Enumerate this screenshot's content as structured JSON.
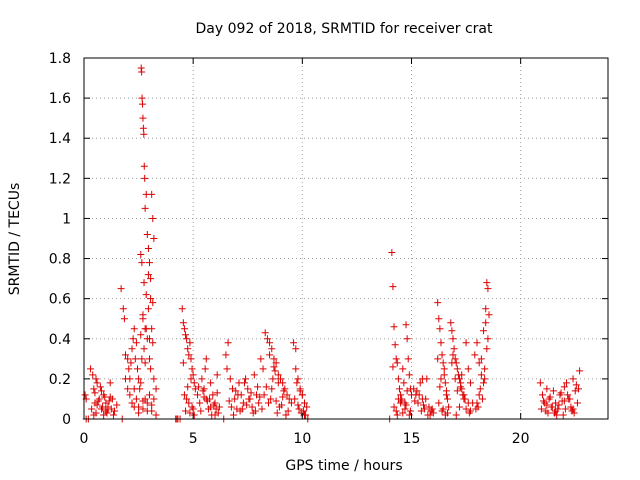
{
  "chart_data": {
    "type": "scatter",
    "title": "Day 092 of 2018, SRMTID for receiver crat",
    "xlabel": "GPS time / hours",
    "ylabel": "SRMTID / TECUs",
    "xlim": [
      0,
      24
    ],
    "ylim": [
      0,
      1.8
    ],
    "xticks": [
      0,
      5,
      10,
      15,
      20
    ],
    "yticks": [
      0,
      0.2,
      0.4,
      0.6,
      0.8,
      1,
      1.2,
      1.4,
      1.6,
      1.8
    ],
    "xtick_labels": [
      "0",
      "5",
      "10",
      "15",
      "20"
    ],
    "ytick_labels": [
      "0",
      "0.2",
      "0.4",
      "0.6",
      "0.8",
      "1",
      "1.2",
      "1.4",
      "1.6",
      "1.8"
    ],
    "grid": true,
    "marker": "+",
    "color": "#dd0000",
    "series": [
      {
        "name": "SRMTID",
        "x": [
          0.05,
          0.1,
          0.3,
          0.4,
          0.45,
          0.5,
          0.55,
          0.6,
          0.7,
          0.8,
          0.9,
          1.0,
          1.1,
          1.2,
          1.3,
          1.4,
          1.5,
          0.35,
          0.5,
          0.65,
          0.75,
          0.85,
          0.95,
          1.05,
          1.15,
          1.25,
          0.45,
          0.6,
          0.8,
          1.0,
          1.2,
          1.35,
          0.55,
          0.9,
          1.1,
          1.7,
          1.8,
          1.85,
          1.9,
          2.0,
          2.05,
          2.1,
          2.15,
          2.2,
          2.25,
          2.3,
          2.35,
          2.4,
          2.45,
          2.5,
          2.55,
          2.6,
          2.65,
          2.7,
          2.75,
          2.8,
          2.85,
          2.9,
          2.95,
          3.0,
          3.05,
          3.1,
          3.15,
          3.2,
          3.3,
          2.1,
          2.2,
          2.3,
          2.4,
          2.5,
          2.6,
          2.7,
          2.8,
          2.9,
          3.0,
          3.1,
          3.2,
          1.9,
          2.0,
          2.3,
          2.5,
          2.7,
          2.9,
          3.1,
          3.3,
          2.62,
          2.64,
          2.66,
          2.68,
          2.7,
          2.72,
          2.74,
          2.76,
          2.78,
          2.8,
          2.85,
          2.9,
          2.95,
          3.0,
          3.05,
          3.1,
          3.15,
          3.2,
          2.6,
          2.65,
          2.75,
          2.85,
          2.95,
          3.05,
          3.15,
          2.7,
          2.8,
          3.0,
          4.5,
          4.55,
          4.6,
          4.65,
          4.7,
          4.75,
          4.8,
          4.85,
          4.9,
          4.95,
          5.0,
          5.05,
          5.1,
          4.6,
          4.7,
          4.8,
          4.9,
          5.0,
          4.55,
          4.75,
          4.95,
          4.65,
          4.85,
          5.05,
          5.2,
          5.3,
          5.4,
          5.5,
          5.6,
          5.7,
          5.8,
          5.9,
          6.0,
          6.1,
          6.2,
          5.35,
          5.55,
          5.75,
          5.95,
          6.15,
          5.45,
          5.65,
          5.85,
          6.05,
          5.25,
          5.5,
          5.8,
          6.1,
          5.6,
          6.0,
          6.5,
          6.6,
          6.7,
          6.8,
          6.9,
          7.0,
          7.1,
          7.2,
          7.3,
          7.4,
          7.5,
          7.6,
          7.7,
          7.8,
          7.9,
          8.0,
          6.55,
          6.75,
          6.95,
          7.15,
          7.35,
          7.55,
          7.75,
          7.95,
          6.65,
          6.85,
          7.05,
          7.25,
          7.45,
          7.65,
          7.85,
          8.05,
          8.1,
          8.2,
          8.3,
          8.4,
          8.5,
          8.6,
          8.7,
          8.8,
          8.9,
          9.0,
          9.1,
          9.2,
          9.3,
          9.4,
          9.5,
          8.15,
          8.35,
          8.55,
          8.75,
          8.95,
          9.15,
          9.35,
          8.25,
          8.45,
          8.65,
          8.85,
          9.05,
          9.25,
          8.5,
          8.7,
          8.9,
          9.1,
          8.6,
          8.8,
          9.6,
          9.7,
          9.8,
          9.9,
          10.0,
          10.1,
          10.2,
          9.65,
          9.85,
          10.05,
          9.75,
          9.95,
          10.15,
          9.7,
          9.9,
          10.1,
          9.8,
          10.0,
          14.1,
          14.15,
          14.2,
          14.25,
          14.3,
          14.35,
          14.4,
          14.45,
          14.5,
          14.55,
          14.6,
          14.65,
          14.7,
          14.75,
          14.8,
          14.85,
          14.9,
          14.95,
          15.0,
          14.2,
          14.3,
          14.4,
          14.5,
          14.6,
          14.7,
          14.8,
          14.9,
          14.15,
          14.35,
          14.55,
          14.75,
          14.95,
          15.1,
          15.2,
          15.3,
          15.4,
          15.5,
          15.6,
          15.7,
          15.8,
          15.9,
          16.0,
          15.15,
          15.35,
          15.55,
          15.75,
          15.95,
          15.25,
          15.45,
          15.65,
          15.85,
          15.5,
          16.2,
          16.25,
          16.3,
          16.35,
          16.4,
          16.45,
          16.5,
          16.55,
          16.6,
          16.65,
          16.7,
          16.2,
          16.3,
          16.4,
          16.5,
          16.6,
          16.25,
          16.45,
          16.65,
          16.35,
          16.55,
          16.8,
          16.85,
          16.9,
          16.95,
          17.0,
          17.05,
          17.1,
          17.15,
          17.2,
          17.25,
          17.3,
          17.35,
          17.4,
          17.5,
          17.6,
          17.7,
          17.8,
          16.9,
          17.0,
          17.1,
          17.2,
          17.3,
          17.4,
          17.5,
          17.6,
          17.7,
          16.85,
          17.05,
          17.25,
          17.45,
          17.65,
          17.9,
          18.0,
          18.1,
          18.2,
          18.3,
          18.4,
          18.45,
          18.5,
          18.55,
          18.4,
          18.3,
          18.2,
          18.1,
          18.0,
          17.95,
          18.15,
          18.35,
          18.5,
          18.25,
          18.45,
          18.05,
          18.35,
          20.9,
          21.0,
          21.1,
          21.2,
          21.3,
          21.4,
          21.5,
          21.6,
          21.7,
          21.8,
          21.9,
          22.0,
          22.1,
          22.2,
          22.3,
          22.4,
          22.5,
          22.6,
          22.7,
          20.95,
          21.15,
          21.35,
          21.55,
          21.75,
          21.95,
          22.15,
          22.35,
          22.55,
          21.05,
          21.25,
          21.45,
          21.65,
          21.85,
          22.05,
          22.25,
          22.45,
          22.65,
          21.2,
          21.6,
          22.0,
          22.4,
          0.1,
          0.2,
          4.2,
          4.3,
          4.4,
          4.25,
          1.75,
          6.4,
          10.25,
          14.0
        ],
        "y": [
          0.12,
          0.1,
          0.25,
          0.22,
          0.15,
          0.08,
          0.2,
          0.18,
          0.1,
          0.05,
          0.12,
          0.08,
          0.06,
          0.18,
          0.1,
          0.04,
          0.07,
          0.05,
          0.13,
          0.09,
          0.16,
          0.06,
          0.11,
          0.03,
          0.09,
          0.05,
          0.02,
          0.07,
          0.14,
          0.04,
          0.11,
          0.02,
          0.03,
          0.02,
          0.05,
          0.65,
          0.55,
          0.5,
          0.32,
          0.3,
          0.25,
          0.2,
          0.28,
          0.35,
          0.4,
          0.45,
          0.3,
          0.38,
          0.25,
          0.2,
          0.15,
          0.42,
          0.3,
          0.5,
          0.35,
          0.28,
          0.45,
          0.4,
          0.55,
          0.3,
          0.25,
          0.45,
          0.38,
          0.2,
          0.15,
          0.12,
          0.08,
          0.15,
          0.1,
          0.06,
          0.18,
          0.05,
          0.1,
          0.08,
          0.12,
          0.04,
          0.1,
          0.2,
          0.15,
          0.06,
          0.03,
          0.09,
          0.04,
          0.07,
          0.02,
          1.75,
          1.73,
          1.6,
          1.57,
          1.5,
          1.45,
          1.42,
          1.26,
          1.2,
          1.05,
          1.12,
          0.92,
          0.85,
          0.78,
          0.7,
          1.12,
          1.0,
          0.9,
          0.82,
          0.78,
          0.68,
          0.62,
          0.72,
          0.6,
          0.58,
          0.52,
          0.45,
          0.4,
          0.55,
          0.48,
          0.45,
          0.42,
          0.4,
          0.35,
          0.32,
          0.38,
          0.3,
          0.25,
          0.22,
          0.18,
          0.15,
          0.12,
          0.1,
          0.08,
          0.2,
          0.05,
          0.28,
          0.16,
          0.06,
          0.04,
          0.03,
          0.02,
          0.12,
          0.08,
          0.2,
          0.15,
          0.1,
          0.05,
          0.18,
          0.12,
          0.08,
          0.22,
          0.06,
          0.04,
          0.25,
          0.1,
          0.07,
          0.03,
          0.14,
          0.09,
          0.02,
          0.05,
          0.16,
          0.11,
          0.06,
          0.13,
          0.3,
          0.02,
          0.32,
          0.38,
          0.2,
          0.15,
          0.1,
          0.05,
          0.18,
          0.12,
          0.08,
          0.2,
          0.15,
          0.1,
          0.06,
          0.22,
          0.12,
          0.08,
          0.25,
          0.06,
          0.14,
          0.04,
          0.18,
          0.1,
          0.03,
          0.16,
          0.09,
          0.02,
          0.12,
          0.05,
          0.07,
          0.13,
          0.04,
          0.11,
          0.3,
          0.25,
          0.43,
          0.4,
          0.38,
          0.35,
          0.3,
          0.28,
          0.22,
          0.2,
          0.18,
          0.15,
          0.12,
          0.1,
          0.08,
          0.05,
          0.16,
          0.1,
          0.24,
          0.06,
          0.14,
          0.04,
          0.12,
          0.08,
          0.2,
          0.03,
          0.07,
          0.02,
          0.32,
          0.26,
          0.18,
          0.11,
          0.15,
          0.09,
          0.38,
          0.35,
          0.2,
          0.15,
          0.12,
          0.08,
          0.06,
          0.1,
          0.05,
          0.04,
          0.18,
          0.03,
          0.02,
          0.25,
          0.14,
          0.02,
          0.07,
          0.12,
          0.83,
          0.66,
          0.46,
          0.37,
          0.3,
          0.28,
          0.2,
          0.15,
          0.12,
          0.1,
          0.25,
          0.18,
          0.08,
          0.47,
          0.4,
          0.3,
          0.22,
          0.15,
          0.12,
          0.06,
          0.04,
          0.1,
          0.08,
          0.03,
          0.05,
          0.14,
          0.02,
          0.26,
          0.02,
          0.09,
          0.07,
          0.04,
          0.15,
          0.12,
          0.08,
          0.18,
          0.1,
          0.05,
          0.2,
          0.06,
          0.04,
          0.03,
          0.09,
          0.12,
          0.07,
          0.02,
          0.05,
          0.14,
          0.04,
          0.1,
          0.02,
          0.2,
          0.58,
          0.5,
          0.45,
          0.38,
          0.32,
          0.28,
          0.22,
          0.18,
          0.12,
          0.1,
          0.06,
          0.3,
          0.16,
          0.04,
          0.25,
          0.14,
          0.08,
          0.05,
          0.03,
          0.2,
          0.02,
          0.48,
          0.44,
          0.4,
          0.35,
          0.3,
          0.28,
          0.25,
          0.22,
          0.2,
          0.18,
          0.15,
          0.12,
          0.1,
          0.38,
          0.25,
          0.18,
          0.08,
          0.32,
          0.2,
          0.14,
          0.06,
          0.22,
          0.12,
          0.05,
          0.08,
          0.04,
          0.28,
          0.02,
          0.16,
          0.1,
          0.03,
          0.32,
          0.38,
          0.28,
          0.22,
          0.18,
          0.55,
          0.68,
          0.65,
          0.52,
          0.48,
          0.44,
          0.3,
          0.12,
          0.08,
          0.05,
          0.15,
          0.2,
          0.4,
          0.1,
          0.35,
          0.06,
          0.25,
          0.18,
          0.12,
          0.08,
          0.15,
          0.1,
          0.06,
          0.14,
          0.08,
          0.05,
          0.12,
          0.09,
          0.16,
          0.18,
          0.1,
          0.06,
          0.2,
          0.14,
          0.08,
          0.24,
          0.05,
          0.04,
          0.11,
          0.03,
          0.07,
          0.02,
          0.12,
          0.04,
          0.17,
          0.09,
          0.03,
          0.06,
          0.02,
          0.13,
          0.05,
          0.1,
          0.03,
          0.15,
          0.07,
          0.04,
          0.09,
          0.05,
          0,
          0,
          0,
          0,
          0,
          0,
          0,
          0,
          0,
          0
        ]
      }
    ]
  }
}
